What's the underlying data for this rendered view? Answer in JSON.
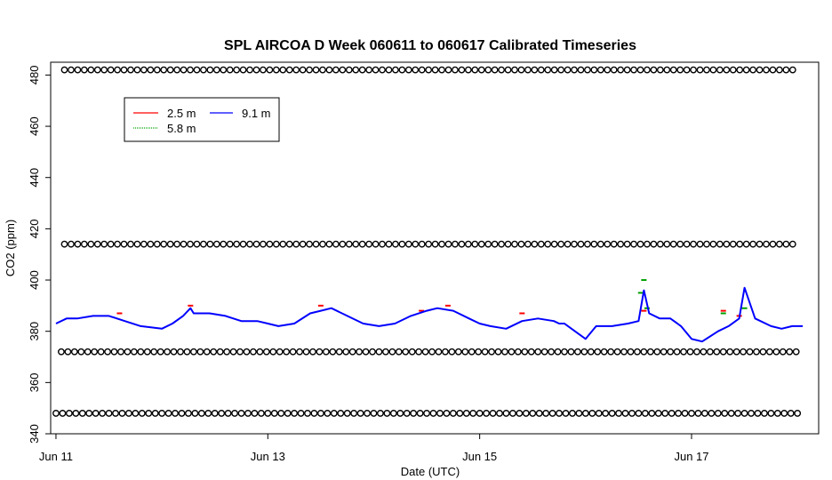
{
  "chart_data": {
    "type": "line",
    "title": "SPL AIRCOA D  Week 060611 to 060617  Calibrated Timeseries",
    "xlabel": "Date (UTC)",
    "ylabel": "CO2 (ppm)",
    "x_unit": "days",
    "x_range": [
      "2006-06-11",
      "2006-06-18"
    ],
    "xlim": [
      -0.05,
      7.2
    ],
    "ylim": [
      340,
      485
    ],
    "x_ticks": [
      {
        "x": 0,
        "label": "Jun 11"
      },
      {
        "x": 2,
        "label": "Jun 13"
      },
      {
        "x": 4,
        "label": "Jun 15"
      },
      {
        "x": 6,
        "label": "Jun 17"
      }
    ],
    "y_ticks": [
      340,
      360,
      380,
      400,
      420,
      440,
      460,
      480
    ],
    "legend": {
      "placement": "top-left",
      "entries": [
        {
          "label": "2.5 m",
          "color": "#ff0000"
        },
        {
          "label": "5.8 m",
          "color": "#00a000"
        },
        {
          "label": "9.1 m",
          "color": "#0000ff"
        }
      ]
    },
    "series": [
      {
        "name": "9.1 m",
        "color": "#0000ff",
        "x": [
          0,
          0.1,
          0.2,
          0.35,
          0.5,
          0.65,
          0.8,
          1.0,
          1.1,
          1.2,
          1.27,
          1.3,
          1.45,
          1.6,
          1.75,
          1.9,
          2.0,
          2.1,
          2.25,
          2.4,
          2.5,
          2.6,
          2.75,
          2.9,
          3.05,
          3.2,
          3.35,
          3.5,
          3.6,
          3.75,
          3.9,
          4.0,
          4.1,
          4.25,
          4.4,
          4.55,
          4.7,
          4.75,
          4.8,
          4.9,
          5.0,
          5.1,
          5.25,
          5.4,
          5.5,
          5.55,
          5.6,
          5.7,
          5.8,
          5.9,
          6.0,
          6.1,
          6.25,
          6.35,
          6.45,
          6.5,
          6.6,
          6.75,
          6.85,
          6.95,
          7.05
        ],
        "y": [
          383,
          385,
          385,
          386,
          386,
          384,
          382,
          381,
          383,
          386,
          389,
          387,
          387,
          386,
          384,
          384,
          383,
          382,
          383,
          387,
          388,
          389,
          386,
          383,
          382,
          383,
          386,
          388,
          389,
          388,
          385,
          383,
          382,
          381,
          384,
          385,
          384,
          383,
          383,
          380,
          377,
          382,
          382,
          383,
          384,
          396,
          387,
          385,
          385,
          382,
          377,
          376,
          380,
          382,
          385,
          397,
          385,
          382,
          381,
          382,
          382
        ]
      },
      {
        "name": "2.5 m",
        "color": "#ff0000",
        "x": [
          0.6,
          1.27,
          2.5,
          3.45,
          3.7,
          4.4,
          5.55,
          6.3,
          6.45
        ],
        "y": [
          387,
          390,
          390,
          388,
          390,
          387,
          388,
          388,
          386
        ]
      },
      {
        "name": "5.8 m",
        "color": "#00a000",
        "x": [
          5.52,
          5.55,
          5.58,
          6.3,
          6.5
        ],
        "y": [
          395,
          400,
          389,
          387,
          389
        ]
      }
    ],
    "calibration_levels": [
      {
        "y": 482,
        "x_start": 0.08,
        "x_end": 7.0
      },
      {
        "y": 414,
        "x_start": 0.08,
        "x_end": 7.0
      },
      {
        "y": 372,
        "x_start": 0.05,
        "x_end": 7.0
      },
      {
        "y": 348,
        "x_start": 0.0,
        "x_end": 7.0
      }
    ]
  }
}
